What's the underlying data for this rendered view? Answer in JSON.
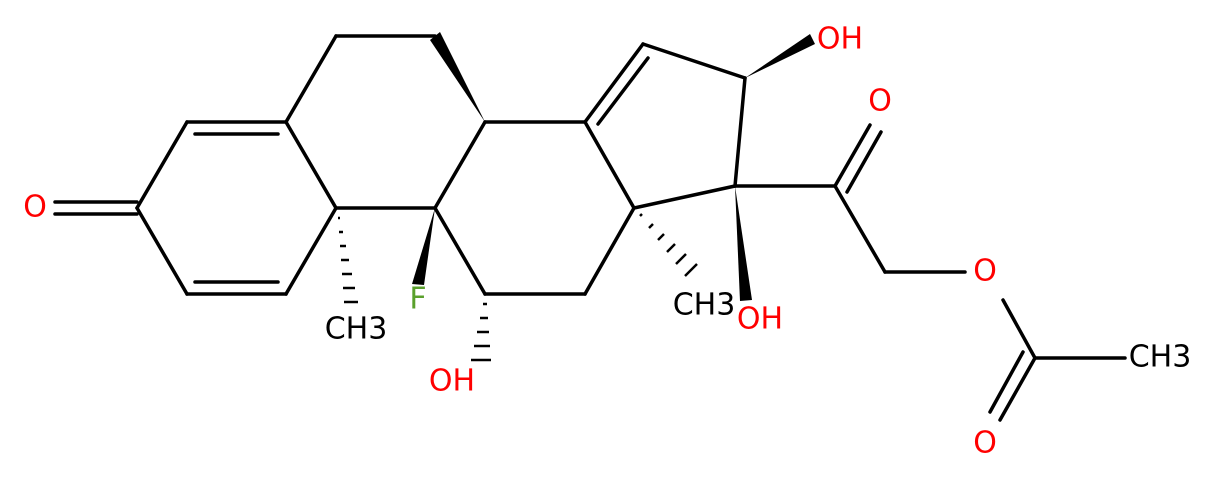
{
  "atoms": {
    "o3": "O",
    "f9": "F",
    "oh11": "OH",
    "me10": "CH3",
    "me13": "CH3",
    "oh16": "OH",
    "oh17": "OH",
    "o20": "O",
    "o21": "O",
    "o_ester": "O",
    "me_ac": "CH3"
  }
}
